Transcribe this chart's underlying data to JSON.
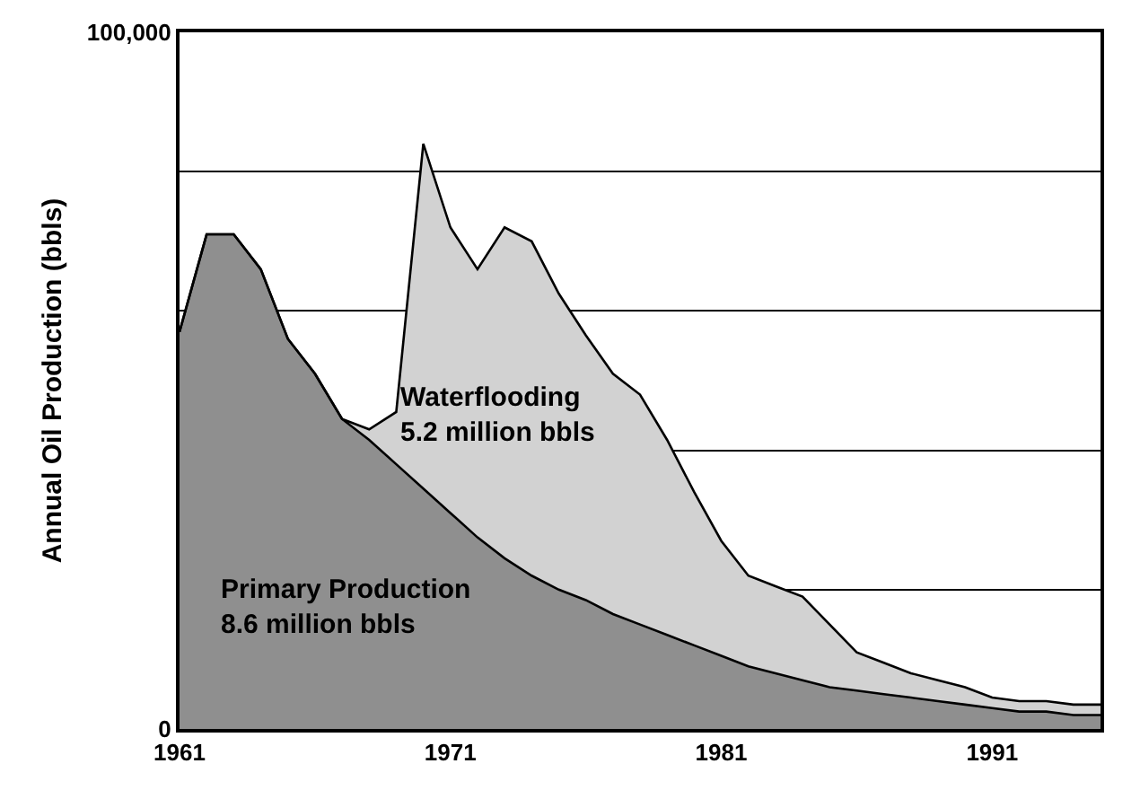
{
  "chart_data": {
    "type": "area",
    "stacked": true,
    "ylabel": "Annual Oil Production (bbls)",
    "x": [
      1961,
      1962,
      1963,
      1964,
      1965,
      1966,
      1967,
      1968,
      1969,
      1970,
      1971,
      1972,
      1973,
      1974,
      1975,
      1976,
      1977,
      1978,
      1979,
      1980,
      1981,
      1982,
      1983,
      1984,
      1985,
      1986,
      1987,
      1988,
      1989,
      1990,
      1991,
      1992,
      1993,
      1994,
      1995
    ],
    "series": [
      {
        "color": "#8f8f8f",
        "values": [
          57000,
          71000,
          71000,
          66000,
          56000,
          51000,
          44500,
          41500,
          38000,
          34500,
          31000,
          27500,
          24500,
          22000,
          20000,
          18500,
          16500,
          15000,
          13500,
          12000,
          10500,
          9000,
          8000,
          7000,
          6000,
          5500,
          5000,
          4500,
          4000,
          3500,
          3000,
          2500,
          2500,
          2000,
          2000
        ]
      },
      {
        "color": "#d2d2d2",
        "values": [
          0,
          0,
          0,
          0,
          0,
          0,
          0,
          1500,
          7500,
          49500,
          41000,
          38500,
          47500,
          48000,
          42500,
          38000,
          34500,
          33000,
          28000,
          22000,
          16500,
          13000,
          12500,
          12000,
          9000,
          5500,
          4500,
          3500,
          3000,
          2500,
          1500,
          1500,
          1500,
          1500,
          1500
        ]
      }
    ],
    "xlim": [
      1961,
      1995
    ],
    "xticks": [
      1961,
      1971,
      1981,
      1991
    ],
    "ylim": [
      0,
      100000
    ],
    "yticks": [
      0,
      {
        "value": 20000,
        "label": null
      },
      {
        "value": 40000,
        "label": null
      },
      {
        "value": 60000,
        "label": null
      },
      {
        "value": 80000,
        "label": null
      },
      {
        "value": 100000,
        "label": "100,000"
      }
    ],
    "grid": "y",
    "annotations": [
      "Waterflooding\n5.2 million bbls",
      "Primary Production\n8.6 million bbls"
    ]
  }
}
